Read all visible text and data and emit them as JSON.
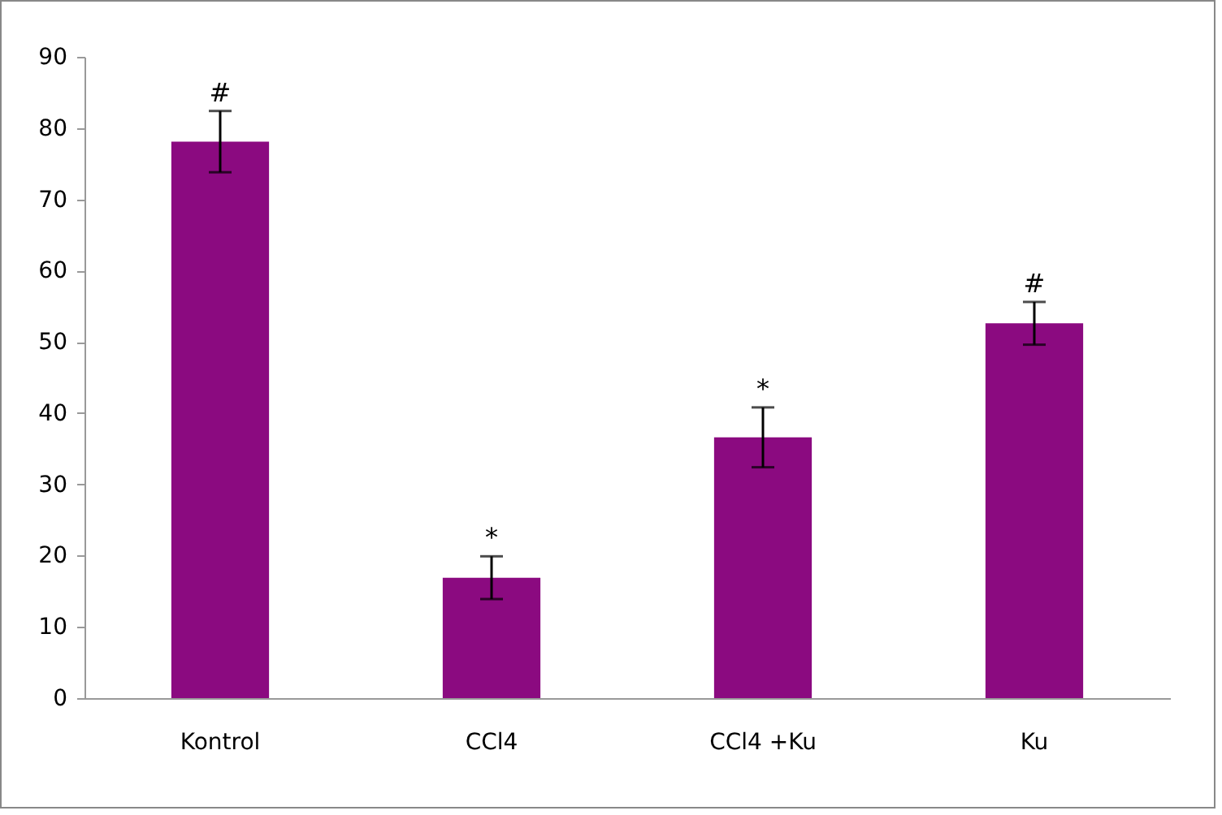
{
  "chart_data": {
    "type": "bar",
    "categories": [
      "Kontrol",
      "CCl4",
      "CCl4 +Ku",
      "Ku"
    ],
    "values": [
      78.1,
      16.9,
      36.6,
      52.6
    ],
    "color": "#8b0a80",
    "errors": [
      4.3,
      3,
      4.2,
      3
    ],
    "ylim": [
      0,
      90
    ],
    "yticks": [
      0,
      10,
      20,
      30,
      40,
      50,
      60,
      70,
      80,
      90
    ],
    "grid": false,
    "annotations": [
      {
        "text": "#",
        "x": "Kontrol",
        "y": 82.4
      },
      {
        "text": "*",
        "x": "CCl4",
        "y": 19.9
      },
      {
        "text": "*",
        "x": "CCl4 +Ku",
        "y": 40.8
      },
      {
        "text": "#",
        "x": "Ku",
        "y": 55.6
      }
    ]
  }
}
